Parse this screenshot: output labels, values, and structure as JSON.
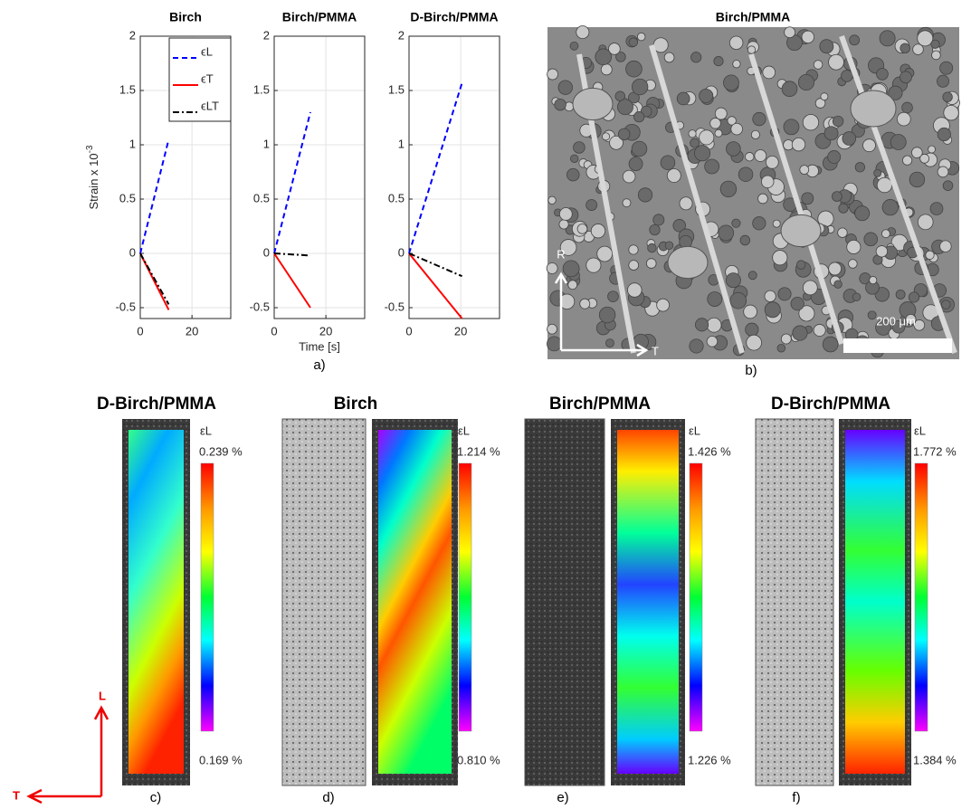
{
  "chart_data": [
    {
      "type": "line",
      "title": "Birch",
      "ylabel": "Strain x 10",
      "ylabel_exponent": "-3",
      "x": [
        0,
        11
      ],
      "xlim": [
        0,
        35
      ],
      "xticks": [
        0,
        20
      ],
      "ylim": [
        -0.6,
        2
      ],
      "yticks": [
        -0.5,
        0,
        0.5,
        1,
        1.5,
        2
      ],
      "grid": true,
      "legend": "upper right",
      "series": [
        {
          "name": "ϵL",
          "color": "#0000ff",
          "linestyle": "dashed",
          "values": [
            0,
            1.05
          ]
        },
        {
          "name": "ϵT",
          "color": "#ff0000",
          "linestyle": "solid",
          "values": [
            0,
            -0.52
          ]
        },
        {
          "name": "ϵLT",
          "color": "#000000",
          "linestyle": "dashdot",
          "values": [
            0,
            -0.47
          ]
        }
      ]
    },
    {
      "type": "line",
      "title": "Birch/PMMA",
      "xlabel": "Time [s]",
      "x": [
        0,
        14
      ],
      "xlim": [
        0,
        35
      ],
      "xticks": [
        0,
        20
      ],
      "ylim": [
        -0.6,
        2
      ],
      "yticks": [
        -0.5,
        0,
        0.5,
        1,
        1.5,
        2
      ],
      "grid": true,
      "series": [
        {
          "color": "#0000ff",
          "linestyle": "dashed",
          "values": [
            0,
            1.3
          ]
        },
        {
          "color": "#ff0000",
          "linestyle": "solid",
          "values": [
            0,
            -0.5
          ]
        },
        {
          "color": "#000000",
          "linestyle": "dashdot",
          "values": [
            0,
            -0.02
          ]
        }
      ]
    },
    {
      "type": "line",
      "title": "D-Birch/PMMA",
      "x": [
        0,
        20.5
      ],
      "xlim": [
        0,
        35
      ],
      "xticks": [
        0,
        20
      ],
      "ylim": [
        -0.6,
        2
      ],
      "yticks": [
        -0.5,
        0,
        0.5,
        1,
        1.5,
        2
      ],
      "grid": true,
      "series": [
        {
          "color": "#0000ff",
          "linestyle": "dashed",
          "values": [
            0,
            1.57
          ]
        },
        {
          "color": "#ff0000",
          "linestyle": "solid",
          "values": [
            0,
            -0.6
          ]
        },
        {
          "color": "#000000",
          "linestyle": "dashdot",
          "values": [
            0,
            -0.21
          ]
        }
      ]
    }
  ],
  "figure_a_label": "a)",
  "sem": {
    "title": "Birch/PMMA",
    "scale_bar": "200 μm",
    "axis_r": "R",
    "axis_t": "T",
    "panel_label": "b)"
  },
  "dic_panels": [
    {
      "title": "D-Birch/PMMA",
      "strain_label": "εL",
      "max_label": "0.239 %",
      "min_label": "0.169 %",
      "panel_label": "c)"
    },
    {
      "title": "Birch",
      "strain_label": "εL",
      "max_label": "1.214 %",
      "min_label": "0.810 %",
      "panel_label": "d)"
    },
    {
      "title": "Birch/PMMA",
      "strain_label": "εL",
      "max_label": "1.426 %",
      "min_label": "1.226 %",
      "panel_label": "e)"
    },
    {
      "title": "D-Birch/PMMA",
      "strain_label": "εL",
      "max_label": "1.772 %",
      "min_label": "1.384 %",
      "panel_label": "f)"
    }
  ],
  "orientation": {
    "axis_l": "L",
    "axis_t": "T"
  }
}
